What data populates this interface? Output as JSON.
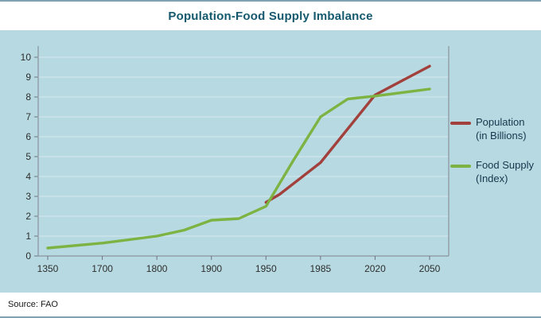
{
  "title_bar": {
    "title": "Population-Food Supply Imbalance"
  },
  "footer": {
    "source": "Source: FAO"
  },
  "colors": {
    "background": "#b7dae2",
    "title_text": "#14596e",
    "population_line": "#a2403c",
    "food_supply_line": "#7db342"
  },
  "chart_data": {
    "type": "line",
    "title": "Population-Food Supply Imbalance",
    "source": "Source: FAO",
    "xlabel": "",
    "ylabel": "",
    "ylim": [
      0,
      10
    ],
    "y_ticks": [
      0,
      1,
      2,
      3,
      4,
      5,
      6,
      7,
      8,
      9,
      10
    ],
    "x_tick_labels": [
      "1350",
      "1700",
      "1800",
      "1900",
      "1950",
      "1985",
      "2020",
      "2050"
    ],
    "grid": "faint horizontal",
    "legend_position": "right",
    "series": [
      {
        "name": "Population (in Billions)",
        "color": "#a2403c",
        "points": [
          [
            4,
            2.7
          ],
          [
            4.25,
            3.1
          ],
          [
            5,
            4.7
          ],
          [
            6,
            8.1
          ],
          [
            7,
            9.55
          ]
        ]
      },
      {
        "name": "Food Supply (Index)",
        "color": "#7db342",
        "points": [
          [
            0,
            0.4
          ],
          [
            1,
            0.65
          ],
          [
            2,
            1.0
          ],
          [
            2.5,
            1.3
          ],
          [
            3,
            1.8
          ],
          [
            3.5,
            1.88
          ],
          [
            4,
            2.5
          ],
          [
            4.5,
            4.8
          ],
          [
            5,
            7.0
          ],
          [
            5.5,
            7.9
          ],
          [
            6,
            8.05
          ],
          [
            7,
            8.4
          ]
        ]
      }
    ]
  }
}
